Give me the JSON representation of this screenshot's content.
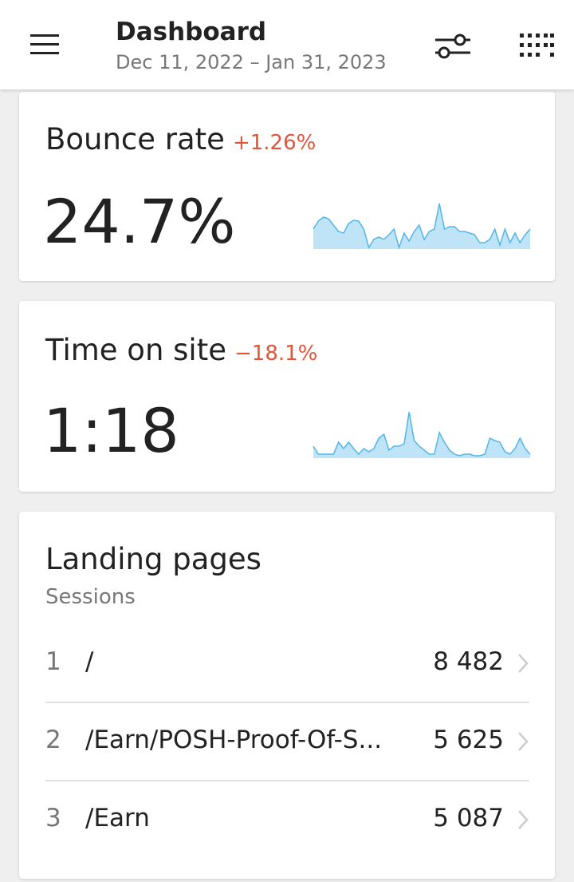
{
  "header": {
    "title": "Dashboard",
    "subtitle": "Dec 11, 2022 – Jan 31, 2023"
  },
  "cards": [
    {
      "title": "Bounce rate",
      "change": "+1.26%",
      "value": "24.7%",
      "sparkline": [
        25,
        35,
        40,
        38,
        30,
        22,
        20,
        32,
        36,
        35,
        25,
        2,
        12,
        15,
        12,
        18,
        25,
        2,
        20,
        10,
        22,
        30,
        12,
        22,
        25,
        57,
        25,
        28,
        28,
        22,
        22,
        20,
        18,
        8,
        8,
        12,
        25,
        5,
        25,
        8,
        20,
        8,
        18,
        25
      ]
    },
    {
      "title": "Time on site",
      "change": "−18.1%",
      "value": "1:18",
      "sparkline": [
        15,
        5,
        5,
        5,
        5,
        20,
        12,
        20,
        12,
        5,
        12,
        8,
        12,
        25,
        30,
        10,
        15,
        15,
        18,
        58,
        22,
        15,
        10,
        5,
        5,
        32,
        20,
        10,
        5,
        3,
        5,
        5,
        3,
        3,
        5,
        25,
        22,
        20,
        8,
        5,
        12,
        25,
        12,
        5
      ]
    }
  ],
  "landing": {
    "title": "Landing pages",
    "subtitle": "Sessions",
    "rows": [
      [
        "1",
        "/",
        "8 482"
      ],
      [
        "2",
        "/Earn/POSH-Proof-Of-S...",
        "5 625"
      ],
      [
        "3",
        "/Earn",
        "5 087"
      ]
    ]
  }
}
